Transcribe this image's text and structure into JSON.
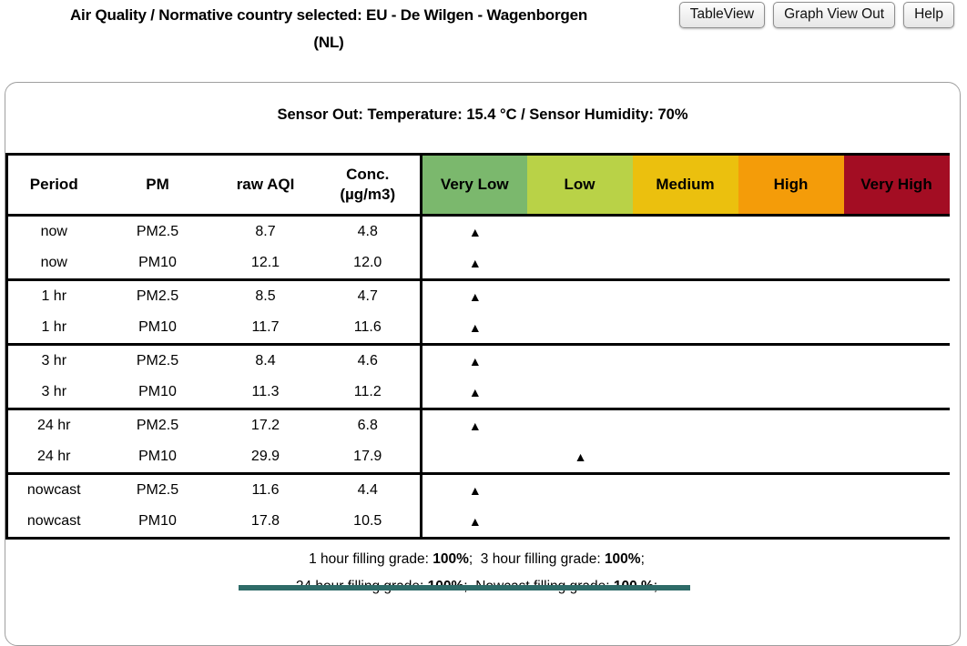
{
  "header": {
    "title_line1": "Air Quality / Normative country selected: EU - De Wilgen - Wagenborgen",
    "title_line2": "(NL)",
    "buttons": [
      {
        "label": "TableView"
      },
      {
        "label": "Graph View Out"
      },
      {
        "label": "Help"
      }
    ]
  },
  "panel": {
    "sensor_line": "Sensor Out: Temperature: 15.4 °C / Sensor Humidity: 70%"
  },
  "table": {
    "columns": {
      "period": "Period",
      "pm": "PM",
      "raw_aqi": "raw AQI",
      "conc_line1": "Conc.",
      "conc_line2": "(µg/m3)"
    },
    "categories": [
      {
        "label": "Very Low",
        "color": "#7bb86d"
      },
      {
        "label": "Low",
        "color": "#b9d247"
      },
      {
        "label": "Medium",
        "color": "#ebc00e"
      },
      {
        "label": "High",
        "color": "#f49c09"
      },
      {
        "label": "Very High",
        "color": "#a30d23"
      }
    ],
    "marker_glyph": "▲",
    "rows": [
      {
        "period": "now",
        "pm": "PM2.5",
        "raw_aqi": "8.7",
        "conc": "4.8",
        "category": 0
      },
      {
        "period": "now",
        "pm": "PM10",
        "raw_aqi": "12.1",
        "conc": "12.0",
        "category": 0
      },
      {
        "period": "1 hr",
        "pm": "PM2.5",
        "raw_aqi": "8.5",
        "conc": "4.7",
        "category": 0
      },
      {
        "period": "1 hr",
        "pm": "PM10",
        "raw_aqi": "11.7",
        "conc": "11.6",
        "category": 0
      },
      {
        "period": "3 hr",
        "pm": "PM2.5",
        "raw_aqi": "8.4",
        "conc": "4.6",
        "category": 0
      },
      {
        "period": "3 hr",
        "pm": "PM10",
        "raw_aqi": "11.3",
        "conc": "11.2",
        "category": 0
      },
      {
        "period": "24 hr",
        "pm": "PM2.5",
        "raw_aqi": "17.2",
        "conc": "6.8",
        "category": 0
      },
      {
        "period": "24 hr",
        "pm": "PM10",
        "raw_aqi": "29.9",
        "conc": "17.9",
        "category": 1
      },
      {
        "period": "nowcast",
        "pm": "PM2.5",
        "raw_aqi": "11.6",
        "conc": "4.4",
        "category": 0
      },
      {
        "period": "nowcast",
        "pm": "PM10",
        "raw_aqi": "17.8",
        "conc": "10.5",
        "category": 0
      }
    ]
  },
  "footer": {
    "line1": {
      "s1": "1 hour filling grade: ",
      "b1": "100%",
      "s2": ";  3 hour filling grade: ",
      "b2": "100%",
      "s3": ";"
    },
    "line2": {
      "s1": "24 hour filling grade: ",
      "b1": "100%",
      "s2": ";  Nowcast filling grade: ",
      "b2": "100 %",
      "s3": ";"
    }
  }
}
